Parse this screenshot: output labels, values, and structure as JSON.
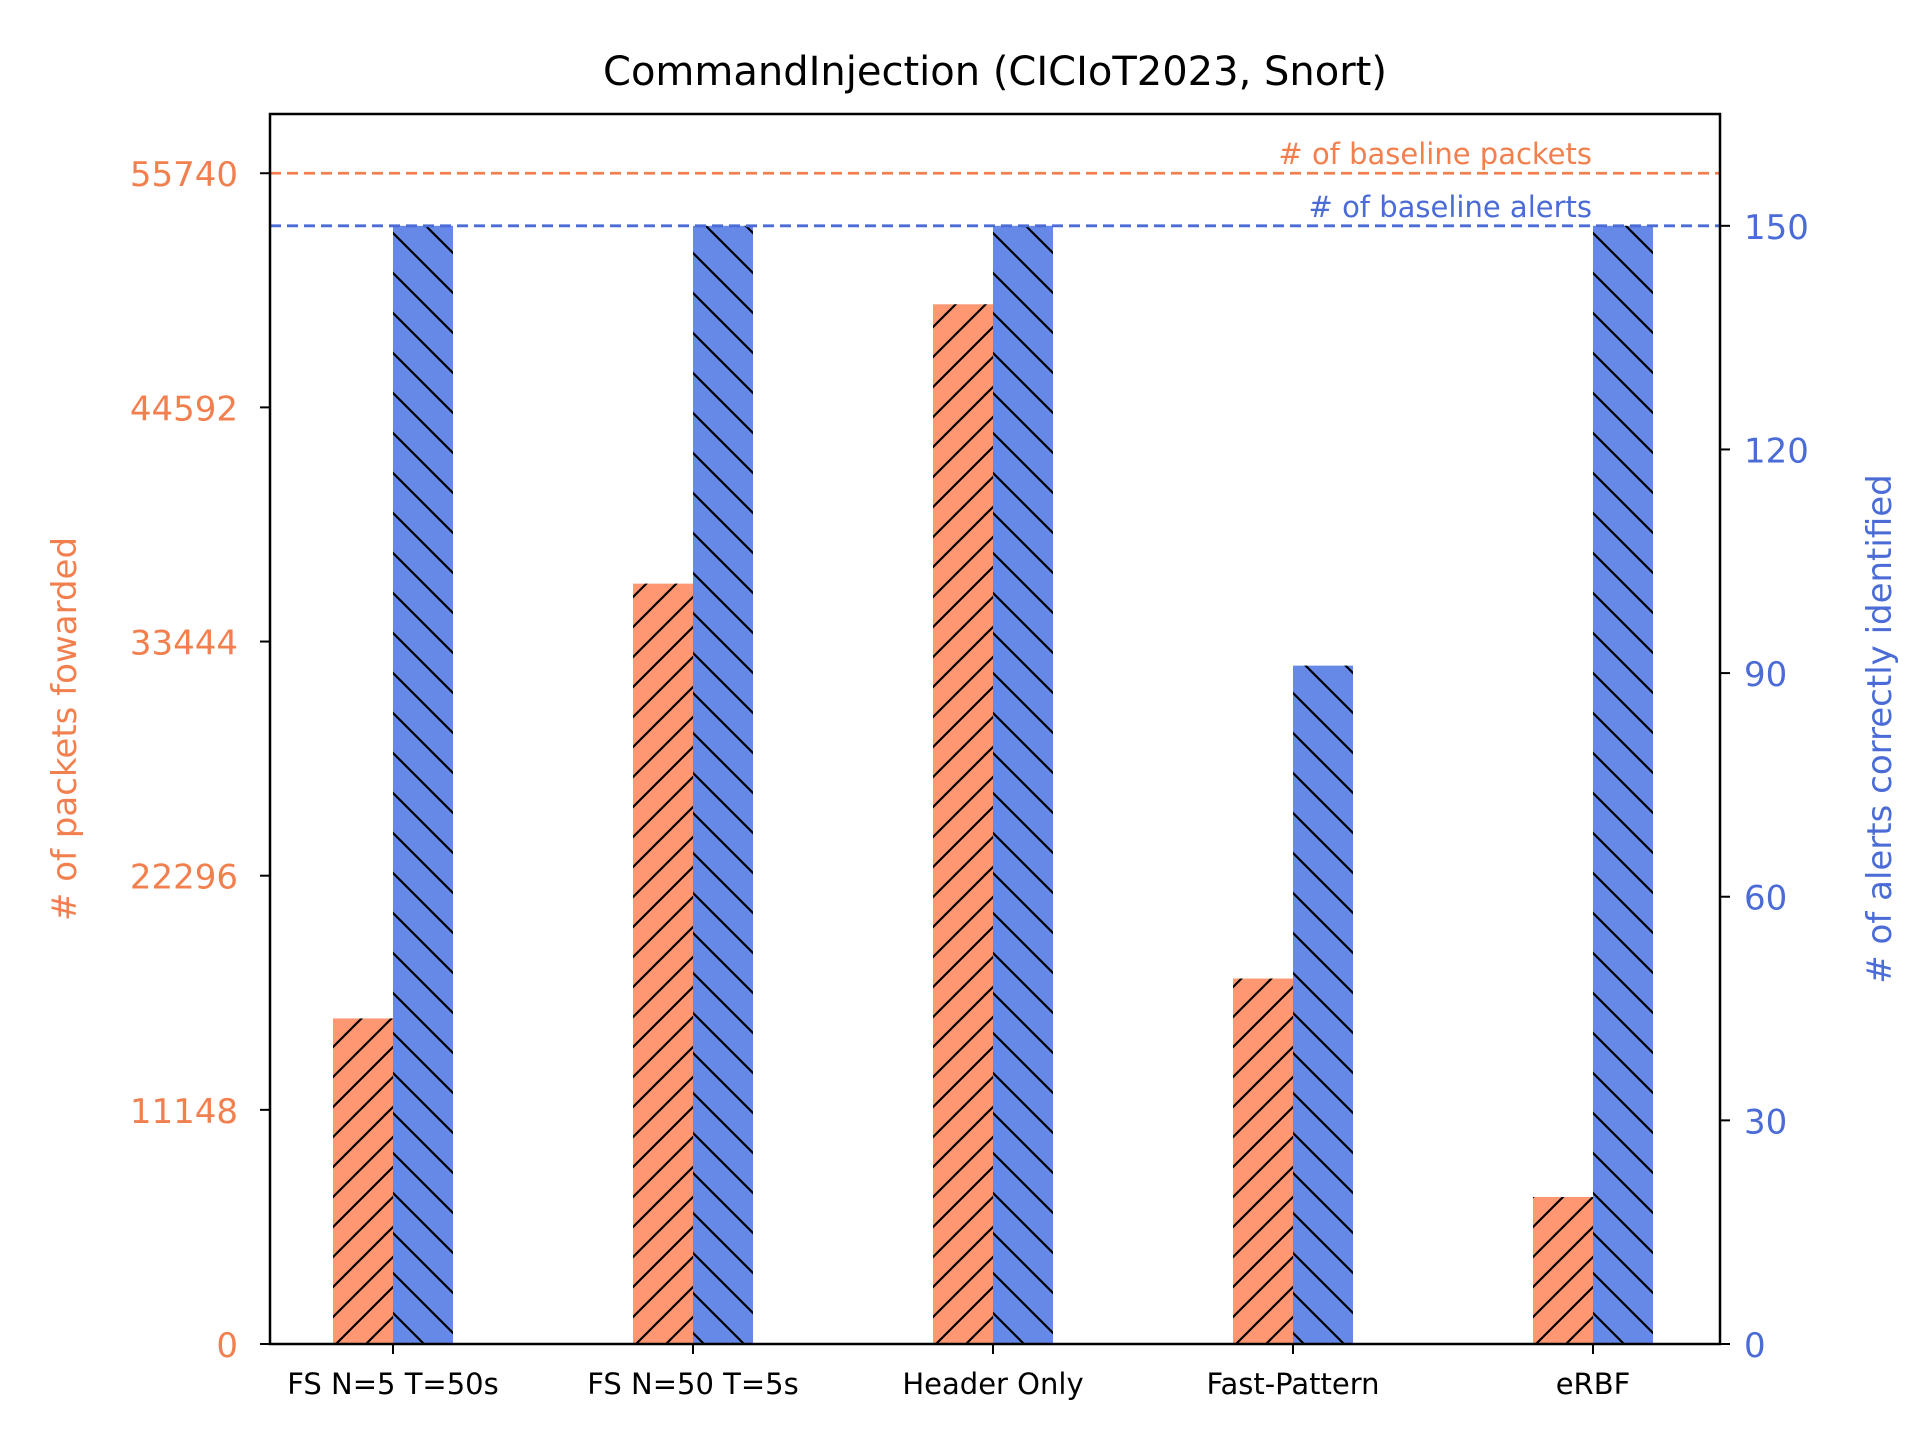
{
  "chart_data": {
    "type": "bar",
    "title": "CommandInjection (CICIoT2023, Snort)",
    "categories": [
      "FS N=5 T=50s",
      "FS N=50 T=5s",
      "Header Only",
      "Fast-Pattern",
      "eRBF"
    ],
    "series": [
      {
        "name": "",
        "axis": "left",
        "color": "#ff9872",
        "hatch": "/",
        "values": [
          15500,
          36200,
          49500,
          17400,
          7000
        ]
      },
      {
        "name": "",
        "axis": "right",
        "color": "#6688e6",
        "hatch": "\\",
        "values": [
          150,
          150,
          150,
          91,
          150
        ]
      }
    ],
    "y_left": {
      "label": "# of packets fowarded",
      "color": "#f2804f",
      "ylim": [
        0,
        58560
      ],
      "ticks": [
        0,
        11148,
        22296,
        33444,
        44592,
        55740
      ]
    },
    "y_right": {
      "label": "# of alerts correctly identified",
      "color": "#4b6bd6",
      "ylim": [
        0,
        165
      ],
      "ticks": [
        0,
        30,
        60,
        90,
        120,
        150
      ]
    },
    "reference_lines": [
      {
        "axis": "left",
        "value": 55740,
        "label": "# of baseline packets",
        "color": "#f2804f"
      },
      {
        "axis": "right",
        "value": 150,
        "label": "# of baseline alerts",
        "color": "#4b6bd6"
      }
    ],
    "grid": false
  }
}
